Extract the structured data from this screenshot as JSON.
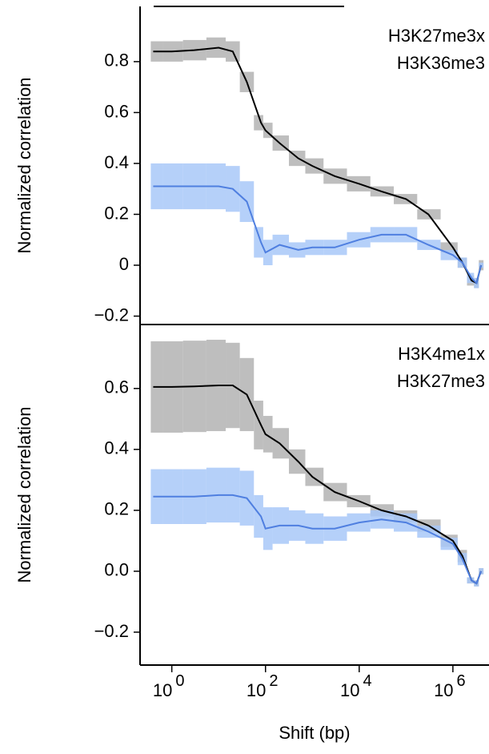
{
  "chart_data": [
    {
      "type": "line",
      "ylabel": "Normalized correlation",
      "annotation": [
        "H3K27me3x",
        "H3K36me3"
      ],
      "x": [
        0.4,
        1,
        3,
        10,
        20,
        40,
        80,
        100,
        200,
        500,
        1000,
        3000,
        10000,
        30000,
        100000,
        300000,
        1000000,
        1600000,
        2500000,
        3200000,
        4000000
      ],
      "xlim": [
        0.21,
        5900000
      ],
      "xlog": true,
      "ylim": [
        -0.233,
        1.017
      ],
      "yticks": [
        0.8,
        0.6,
        0.4,
        0.2,
        0,
        {
          "value": -0.2,
          "label": "−0.2"
        }
      ],
      "series": [
        {
          "color": "#000000",
          "band_color": "#b3b3b3",
          "values": [
            0.84,
            0.84,
            0.845,
            0.855,
            0.84,
            0.72,
            0.56,
            0.53,
            0.48,
            0.42,
            0.39,
            0.35,
            0.32,
            0.29,
            0.26,
            0.2,
            0.07,
            0.01,
            -0.06,
            -0.07,
            0.0
          ],
          "errors": [
            0.04,
            0.04,
            0.04,
            0.04,
            0.04,
            0.04,
            0.03,
            0.03,
            0.03,
            0.03,
            0.03,
            0.03,
            0.03,
            0.02,
            0.02,
            0.02,
            0.02,
            0.02,
            0.02,
            0.02,
            0.02
          ]
        },
        {
          "color": "#4f7fe0",
          "band_color": "#a8c8f8",
          "values": [
            0.31,
            0.31,
            0.31,
            0.31,
            0.3,
            0.25,
            0.09,
            0.05,
            0.08,
            0.06,
            0.07,
            0.07,
            0.1,
            0.12,
            0.12,
            0.08,
            0.04,
            0.01,
            -0.05,
            -0.07,
            0.0
          ],
          "errors": [
            0.09,
            0.09,
            0.09,
            0.09,
            0.09,
            0.08,
            0.06,
            0.05,
            0.04,
            0.03,
            0.03,
            0.03,
            0.03,
            0.03,
            0.03,
            0.02,
            0.02,
            0.02,
            0.02,
            0.02,
            0.01
          ]
        }
      ]
    },
    {
      "type": "line",
      "ylabel": "Normalized correlation",
      "xlabel": "Shift (bp)",
      "annotation": [
        "H3K4me1x",
        "H3K27me3"
      ],
      "x": [
        0.4,
        1,
        3,
        10,
        20,
        40,
        80,
        100,
        200,
        500,
        1000,
        3000,
        10000,
        30000,
        100000,
        300000,
        1000000,
        1600000,
        2500000,
        3200000,
        4000000
      ],
      "xlim": [
        0.21,
        5900000
      ],
      "xlog": true,
      "xticks": [
        {
          "value": 1,
          "label": "10",
          "exponent": "0"
        },
        {
          "value": 100,
          "label": "10",
          "exponent": "2"
        },
        {
          "value": 10000,
          "label": "10",
          "exponent": "4"
        },
        {
          "value": 1000000,
          "label": "10",
          "exponent": "6"
        }
      ],
      "ylim": [
        -0.308,
        0.81
      ],
      "yticks": [
        0.6,
        0.4,
        0.2,
        {
          "value": 0,
          "label": "0.0"
        },
        {
          "value": -0.2,
          "label": "−0.2"
        }
      ],
      "series": [
        {
          "color": "#000000",
          "band_color": "#b3b3b3",
          "values": [
            0.605,
            0.605,
            0.607,
            0.61,
            0.61,
            0.58,
            0.48,
            0.45,
            0.42,
            0.36,
            0.31,
            0.26,
            0.23,
            0.2,
            0.18,
            0.15,
            0.1,
            0.05,
            -0.03,
            -0.04,
            0.0
          ],
          "errors": [
            0.15,
            0.15,
            0.15,
            0.15,
            0.14,
            0.12,
            0.08,
            0.06,
            0.05,
            0.04,
            0.03,
            0.03,
            0.02,
            0.02,
            0.02,
            0.02,
            0.02,
            0.02,
            0.01,
            0.01,
            0.01
          ]
        },
        {
          "color": "#4f7fe0",
          "band_color": "#a8c8f8",
          "values": [
            0.245,
            0.245,
            0.245,
            0.25,
            0.25,
            0.24,
            0.18,
            0.14,
            0.15,
            0.15,
            0.14,
            0.14,
            0.16,
            0.17,
            0.16,
            0.13,
            0.09,
            0.04,
            -0.03,
            -0.04,
            0.0
          ],
          "errors": [
            0.09,
            0.09,
            0.09,
            0.09,
            0.09,
            0.09,
            0.07,
            0.07,
            0.06,
            0.05,
            0.05,
            0.04,
            0.03,
            0.03,
            0.03,
            0.02,
            0.02,
            0.02,
            0.01,
            0.01,
            0.01
          ]
        }
      ]
    }
  ]
}
